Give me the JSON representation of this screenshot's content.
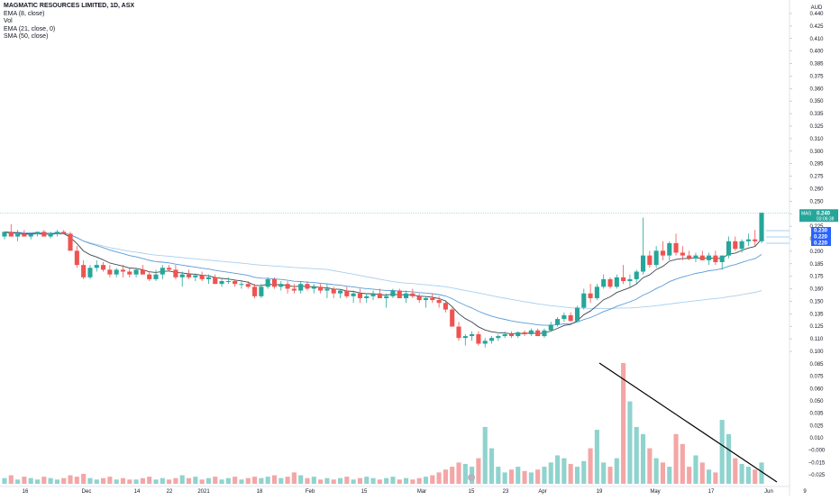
{
  "legend": {
    "title": "MAGMATIC RESOURCES LIMITED, 1D, ASX",
    "ema8": "EMA (8, close)",
    "vol": "Vol",
    "ema21": "EMA (21, close, 0)",
    "sma50": "SMA (50, close)"
  },
  "currency": "AUD",
  "price_badges": {
    "symbol": "MAG",
    "last": "0.240",
    "countdown": "03:06:38",
    "ema8": "0.230",
    "ema21": "0.220",
    "sma50": "0.220"
  },
  "colors": {
    "up": "#26a69a",
    "down": "#ef5350",
    "vol_up": "#8fd3ce",
    "vol_down": "#f4a6a6",
    "ema8": "#434651",
    "ema21": "#5b9bd5",
    "sma50": "#a9cfee",
    "trendline": "#000000",
    "badge_blue": "#2962ff"
  },
  "chart_data": {
    "type": "candlestick",
    "title": "MAGMATIC RESOURCES LIMITED, 1D, ASX",
    "price_axis": {
      "ticks": [
        "0.440",
        "0.425",
        "0.410",
        "0.400",
        "0.385",
        "0.375",
        "0.360",
        "0.350",
        "0.335",
        "0.325",
        "0.310",
        "0.300",
        "0.285",
        "0.275",
        "0.260",
        "0.250",
        "0.235",
        "0.225",
        "0.210",
        "0.200",
        "0.185",
        "0.175",
        "0.160",
        "0.150",
        "0.135",
        "0.125",
        "0.110",
        "0.100"
      ],
      "ylim": [
        0.092,
        0.455
      ]
    },
    "volume_axis": {
      "ticks": [
        "0.085",
        "0.075",
        "0.060",
        "0.050",
        "0.035",
        "0.025",
        "0.010",
        "−0.000",
        "−0.015",
        "−0.025"
      ]
    },
    "x_axis": {
      "ticks": [
        "16",
        "Dec",
        "14",
        "22",
        "2021",
        "18",
        "Feb",
        "15",
        "Mar",
        "15",
        "23",
        "Apr",
        "19",
        "May",
        "17",
        "Jun",
        "9"
      ]
    },
    "candles": [
      [
        0.215,
        0.22,
        0.212,
        0.22
      ],
      [
        0.22,
        0.228,
        0.215,
        0.215
      ],
      [
        0.215,
        0.222,
        0.21,
        0.218
      ],
      [
        0.218,
        0.222,
        0.215,
        0.215
      ],
      [
        0.215,
        0.218,
        0.212,
        0.218
      ],
      [
        0.218,
        0.22,
        0.215,
        0.22
      ],
      [
        0.22,
        0.222,
        0.215,
        0.215
      ],
      [
        0.215,
        0.22,
        0.213,
        0.218
      ],
      [
        0.218,
        0.222,
        0.215,
        0.22
      ],
      [
        0.22,
        0.222,
        0.218,
        0.218
      ],
      [
        0.218,
        0.22,
        0.2,
        0.2
      ],
      [
        0.2,
        0.205,
        0.182,
        0.185
      ],
      [
        0.185,
        0.19,
        0.17,
        0.172
      ],
      [
        0.172,
        0.185,
        0.17,
        0.182
      ],
      [
        0.182,
        0.19,
        0.178,
        0.185
      ],
      [
        0.185,
        0.188,
        0.178,
        0.18
      ],
      [
        0.18,
        0.185,
        0.172,
        0.175
      ],
      [
        0.175,
        0.182,
        0.172,
        0.18
      ],
      [
        0.18,
        0.185,
        0.172,
        0.178
      ],
      [
        0.178,
        0.182,
        0.172,
        0.175
      ],
      [
        0.175,
        0.182,
        0.172,
        0.18
      ],
      [
        0.18,
        0.185,
        0.175,
        0.175
      ],
      [
        0.175,
        0.178,
        0.168,
        0.17
      ],
      [
        0.17,
        0.18,
        0.168,
        0.175
      ],
      [
        0.175,
        0.185,
        0.17,
        0.182
      ],
      [
        0.182,
        0.185,
        0.178,
        0.18
      ],
      [
        0.18,
        0.185,
        0.17,
        0.172
      ],
      [
        0.172,
        0.178,
        0.162,
        0.175
      ],
      [
        0.175,
        0.18,
        0.17,
        0.172
      ],
      [
        0.172,
        0.176,
        0.168,
        0.174
      ],
      [
        0.174,
        0.178,
        0.168,
        0.17
      ],
      [
        0.17,
        0.175,
        0.165,
        0.172
      ],
      [
        0.172,
        0.175,
        0.165,
        0.165
      ],
      [
        0.165,
        0.17,
        0.162,
        0.168
      ],
      [
        0.168,
        0.172,
        0.165,
        0.168
      ],
      [
        0.168,
        0.17,
        0.162,
        0.165
      ],
      [
        0.165,
        0.168,
        0.16,
        0.165
      ],
      [
        0.165,
        0.168,
        0.16,
        0.162
      ],
      [
        0.162,
        0.165,
        0.15,
        0.152
      ],
      [
        0.152,
        0.165,
        0.15,
        0.162
      ],
      [
        0.162,
        0.172,
        0.16,
        0.17
      ],
      [
        0.17,
        0.172,
        0.16,
        0.162
      ],
      [
        0.162,
        0.168,
        0.158,
        0.165
      ],
      [
        0.165,
        0.168,
        0.155,
        0.16
      ],
      [
        0.16,
        0.165,
        0.155,
        0.158
      ],
      [
        0.158,
        0.168,
        0.155,
        0.165
      ],
      [
        0.165,
        0.168,
        0.158,
        0.16
      ],
      [
        0.16,
        0.165,
        0.155,
        0.162
      ],
      [
        0.162,
        0.165,
        0.155,
        0.158
      ],
      [
        0.158,
        0.165,
        0.15,
        0.16
      ],
      [
        0.16,
        0.162,
        0.15,
        0.155
      ],
      [
        0.155,
        0.16,
        0.15,
        0.158
      ],
      [
        0.158,
        0.162,
        0.15,
        0.152
      ],
      [
        0.152,
        0.158,
        0.145,
        0.155
      ],
      [
        0.155,
        0.16,
        0.145,
        0.15
      ],
      [
        0.15,
        0.155,
        0.145,
        0.152
      ],
      [
        0.152,
        0.158,
        0.148,
        0.155
      ],
      [
        0.155,
        0.16,
        0.15,
        0.15
      ],
      [
        0.15,
        0.155,
        0.14,
        0.152
      ],
      [
        0.152,
        0.16,
        0.15,
        0.158
      ],
      [
        0.158,
        0.16,
        0.15,
        0.15
      ],
      [
        0.15,
        0.158,
        0.145,
        0.155
      ],
      [
        0.155,
        0.16,
        0.15,
        0.152
      ],
      [
        0.152,
        0.155,
        0.145,
        0.148
      ],
      [
        0.148,
        0.152,
        0.14,
        0.15
      ],
      [
        0.15,
        0.155,
        0.145,
        0.148
      ],
      [
        0.148,
        0.152,
        0.14,
        0.145
      ],
      [
        0.145,
        0.148,
        0.135,
        0.138
      ],
      [
        0.138,
        0.14,
        0.12,
        0.12
      ],
      [
        0.12,
        0.125,
        0.105,
        0.108
      ],
      [
        0.108,
        0.112,
        0.1,
        0.11
      ],
      [
        0.11,
        0.115,
        0.105,
        0.112
      ],
      [
        0.112,
        0.115,
        0.1,
        0.102
      ],
      [
        0.102,
        0.108,
        0.098,
        0.105
      ],
      [
        0.105,
        0.11,
        0.102,
        0.108
      ],
      [
        0.108,
        0.112,
        0.105,
        0.11
      ],
      [
        0.11,
        0.115,
        0.108,
        0.112
      ],
      [
        0.112,
        0.115,
        0.108,
        0.11
      ],
      [
        0.11,
        0.115,
        0.108,
        0.114
      ],
      [
        0.114,
        0.116,
        0.11,
        0.112
      ],
      [
        0.112,
        0.118,
        0.11,
        0.116
      ],
      [
        0.116,
        0.118,
        0.11,
        0.11
      ],
      [
        0.11,
        0.118,
        0.108,
        0.116
      ],
      [
        0.116,
        0.125,
        0.115,
        0.122
      ],
      [
        0.122,
        0.13,
        0.12,
        0.128
      ],
      [
        0.128,
        0.135,
        0.125,
        0.132
      ],
      [
        0.132,
        0.135,
        0.125,
        0.126
      ],
      [
        0.126,
        0.142,
        0.125,
        0.14
      ],
      [
        0.14,
        0.16,
        0.138,
        0.155
      ],
      [
        0.155,
        0.165,
        0.145,
        0.15
      ],
      [
        0.15,
        0.165,
        0.148,
        0.162
      ],
      [
        0.162,
        0.175,
        0.16,
        0.17
      ],
      [
        0.17,
        0.172,
        0.16,
        0.162
      ],
      [
        0.162,
        0.175,
        0.16,
        0.172
      ],
      [
        0.172,
        0.185,
        0.165,
        0.168
      ],
      [
        0.168,
        0.175,
        0.162,
        0.17
      ],
      [
        0.17,
        0.18,
        0.165,
        0.178
      ],
      [
        0.178,
        0.235,
        0.175,
        0.195
      ],
      [
        0.195,
        0.2,
        0.182,
        0.185
      ],
      [
        0.185,
        0.205,
        0.182,
        0.2
      ],
      [
        0.2,
        0.21,
        0.19,
        0.195
      ],
      [
        0.195,
        0.21,
        0.19,
        0.208
      ],
      [
        0.208,
        0.218,
        0.195,
        0.198
      ],
      [
        0.198,
        0.205,
        0.19,
        0.195
      ],
      [
        0.195,
        0.2,
        0.19,
        0.192
      ],
      [
        0.192,
        0.198,
        0.188,
        0.195
      ],
      [
        0.195,
        0.2,
        0.19,
        0.19
      ],
      [
        0.19,
        0.198,
        0.185,
        0.195
      ],
      [
        0.195,
        0.2,
        0.185,
        0.188
      ],
      [
        0.188,
        0.195,
        0.18,
        0.195
      ],
      [
        0.195,
        0.215,
        0.192,
        0.21
      ],
      [
        0.21,
        0.215,
        0.2,
        0.202
      ],
      [
        0.202,
        0.212,
        0.198,
        0.21
      ],
      [
        0.21,
        0.218,
        0.205,
        0.212
      ],
      [
        0.212,
        0.222,
        0.205,
        0.21
      ],
      [
        0.21,
        0.24,
        0.208,
        0.24
      ]
    ],
    "volume": [
      0.004,
      0.006,
      0.003,
      0.005,
      0.004,
      0.003,
      0.005,
      0.004,
      0.003,
      0.004,
      0.006,
      0.005,
      0.007,
      0.004,
      0.003,
      0.004,
      0.005,
      0.003,
      0.004,
      0.003,
      0.003,
      0.004,
      0.005,
      0.003,
      0.004,
      0.003,
      0.004,
      0.006,
      0.004,
      0.005,
      0.003,
      0.004,
      0.005,
      0.003,
      0.004,
      0.005,
      0.003,
      0.004,
      0.005,
      0.004,
      0.005,
      0.006,
      0.004,
      0.005,
      0.008,
      0.006,
      0.004,
      0.005,
      0.003,
      0.004,
      0.003,
      0.004,
      0.005,
      0.003,
      0.004,
      0.005,
      0.004,
      0.003,
      0.004,
      0.005,
      0.003,
      0.004,
      0.003,
      0.004,
      0.005,
      0.006,
      0.008,
      0.01,
      0.012,
      0.015,
      0.014,
      0.012,
      0.018,
      0.04,
      0.025,
      0.012,
      0.008,
      0.01,
      0.012,
      0.009,
      0.008,
      0.01,
      0.012,
      0.015,
      0.02,
      0.018,
      0.014,
      0.012,
      0.016,
      0.025,
      0.038,
      0.015,
      0.012,
      0.018,
      0.085,
      0.058,
      0.04,
      0.035,
      0.025,
      0.018,
      0.015,
      0.012,
      0.035,
      0.028,
      0.012,
      0.02,
      0.015,
      0.01,
      0.008,
      0.045,
      0.035,
      0.018,
      0.014,
      0.012,
      0.01,
      0.015
    ],
    "ema8": [],
    "ema21": [],
    "sma50": []
  }
}
